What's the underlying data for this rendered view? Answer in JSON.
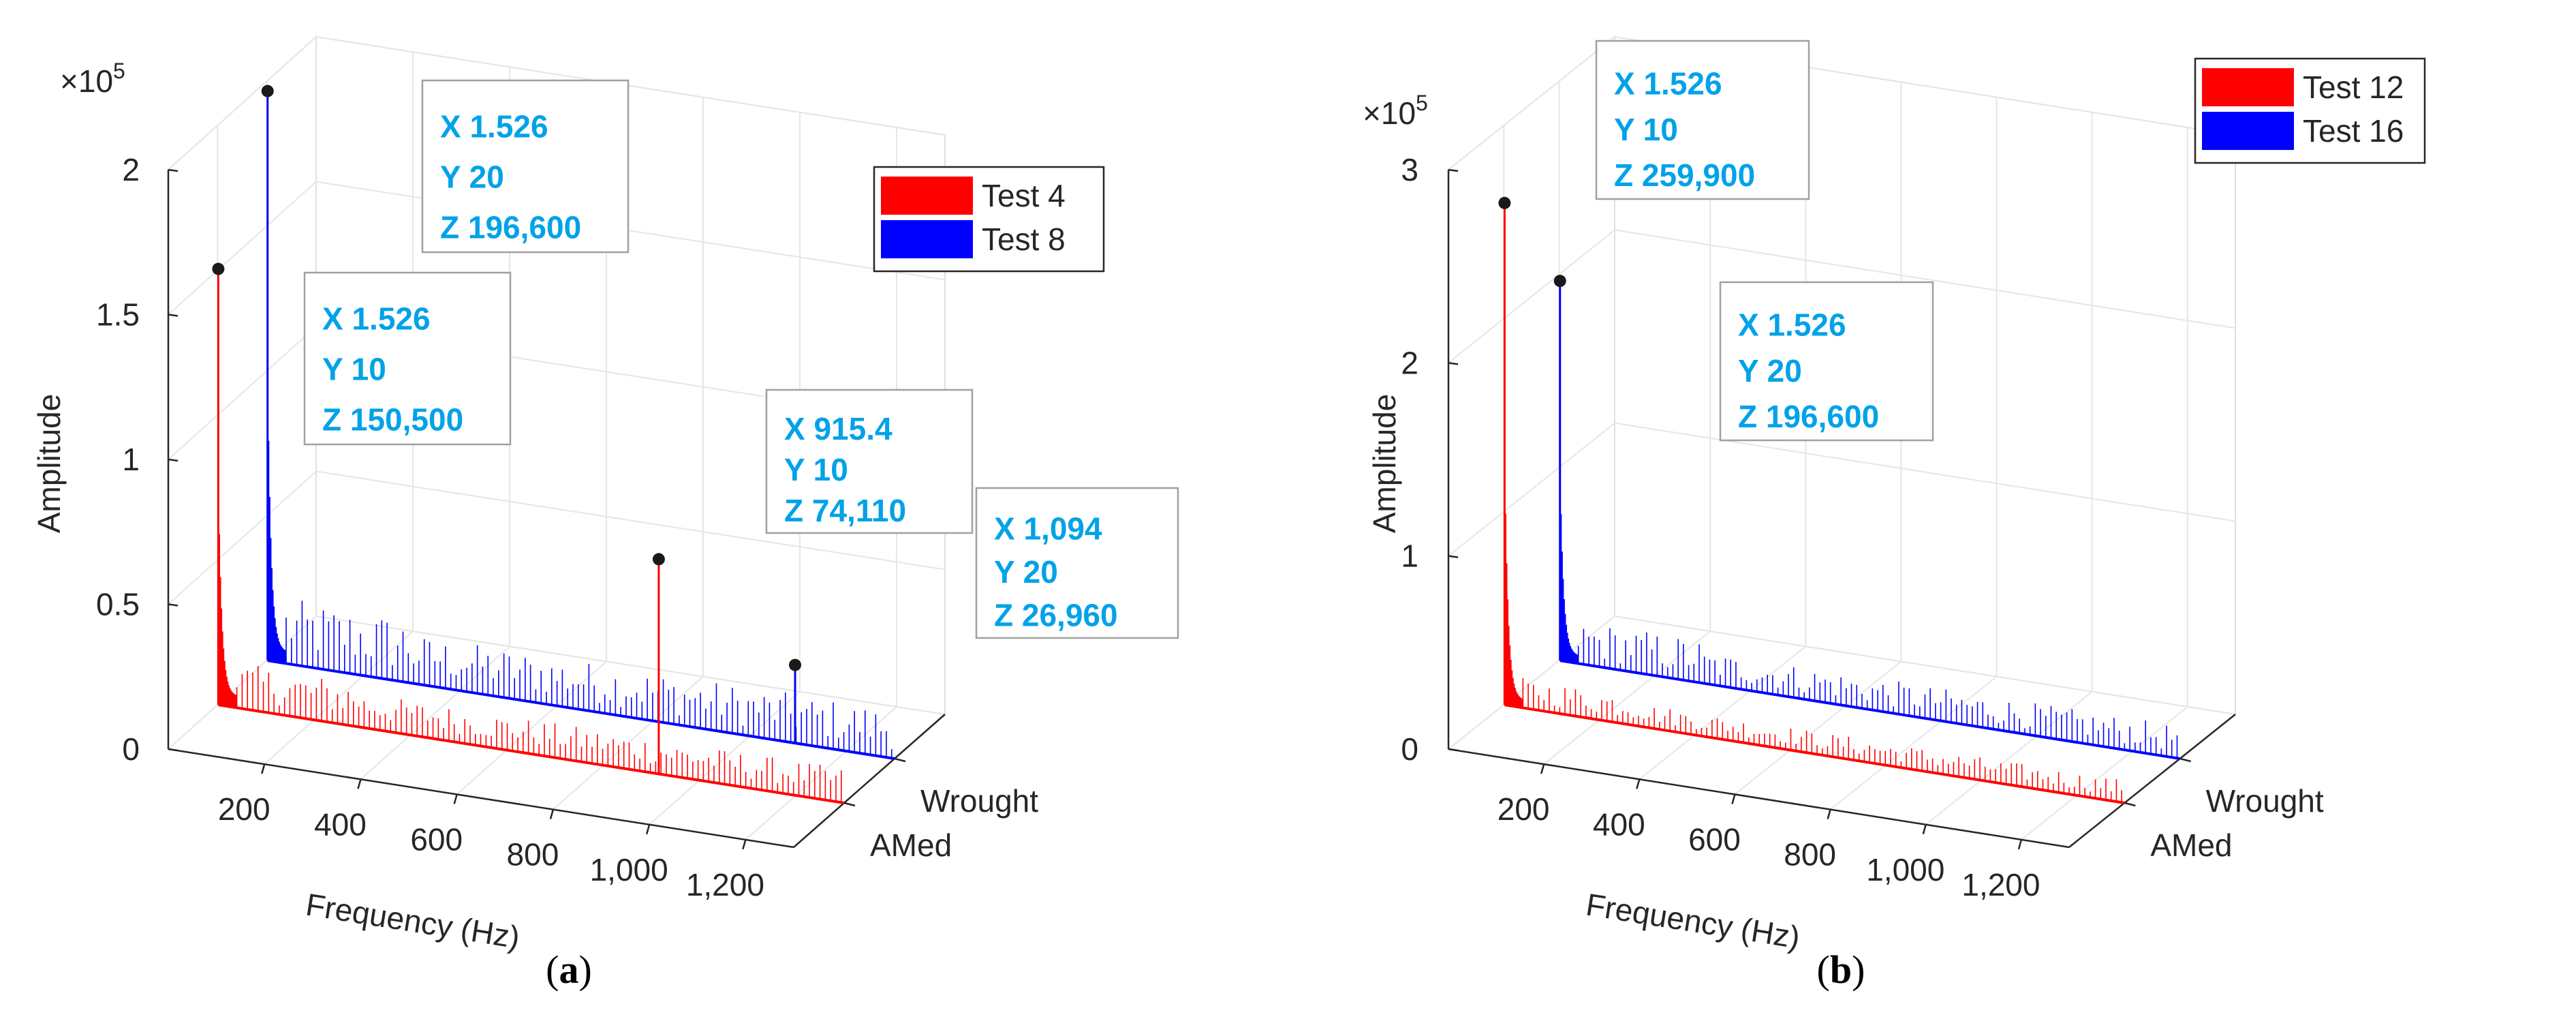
{
  "chart_data": [
    {
      "type": "3d-line",
      "panel_label": "(a)",
      "multiplier": "×10",
      "multiplier_exp": "5",
      "xlabel": "Frequency (Hz)",
      "ylabel": "Amplitude",
      "x_ticks": [
        "200",
        "400",
        "600",
        "800",
        "1,000",
        "1,200"
      ],
      "x_tick_values": [
        200,
        400,
        600,
        800,
        1000,
        1200
      ],
      "y_ticks": [
        "AMed",
        "Wrought"
      ],
      "z_ticks": [
        "0",
        "0.5",
        "1",
        "1.5",
        "2"
      ],
      "z_tick_values": [
        0,
        0.5,
        1,
        1.5,
        2
      ],
      "legend": [
        {
          "name": "Test 4",
          "color": "#ff0000"
        },
        {
          "name": "Test 8",
          "color": "#0000ff"
        }
      ],
      "series": [
        {
          "name": "Test 4",
          "y": 10,
          "color": "#ff0000",
          "peak": {
            "x": 1.526,
            "z": 150500
          }
        },
        {
          "name": "Test 8",
          "y": 20,
          "color": "#0000ff",
          "peak": {
            "x": 1.526,
            "z": 196600
          }
        }
      ],
      "datatips": [
        {
          "x": "X 1.526",
          "y": "Y 20",
          "z": "Z 196,600",
          "xv": 1.526,
          "yv": 20,
          "zv": 196600
        },
        {
          "x": "X 1.526",
          "y": "Y 10",
          "z": "Z 150,500",
          "xv": 1.526,
          "yv": 10,
          "zv": 150500
        },
        {
          "x": "X 915.4",
          "y": "Y 10",
          "z": "Z 74,110",
          "xv": 915.4,
          "yv": 10,
          "zv": 74110
        },
        {
          "x": "X 1,094",
          "y": "Y 20",
          "z": "Z 26,960",
          "xv": 1094,
          "yv": 20,
          "zv": 26960
        }
      ]
    },
    {
      "type": "3d-line",
      "panel_label": "(b)",
      "multiplier": "×10",
      "multiplier_exp": "5",
      "xlabel": "Frequency (Hz)",
      "ylabel": "Amplitude",
      "x_ticks": [
        "200",
        "400",
        "600",
        "800",
        "1,000",
        "1,200"
      ],
      "x_tick_values": [
        200,
        400,
        600,
        800,
        1000,
        1200
      ],
      "y_ticks": [
        "AMed",
        "Wrought"
      ],
      "z_ticks": [
        "0",
        "1",
        "2",
        "3"
      ],
      "z_tick_values": [
        0,
        1,
        2,
        3
      ],
      "legend": [
        {
          "name": "Test 12",
          "color": "#ff0000"
        },
        {
          "name": "Test 16",
          "color": "#0000ff"
        }
      ],
      "series": [
        {
          "name": "Test 12",
          "y": 10,
          "color": "#ff0000",
          "peak": {
            "x": 1.526,
            "z": 259900
          }
        },
        {
          "name": "Test 16",
          "y": 20,
          "color": "#0000ff",
          "peak": {
            "x": 1.526,
            "z": 196600
          }
        }
      ],
      "datatips": [
        {
          "x": "X 1.526",
          "y": "Y 10",
          "z": "Z 259,900",
          "xv": 1.526,
          "yv": 10,
          "zv": 259900
        },
        {
          "x": "X 1.526",
          "y": "Y 20",
          "z": "Z 196,600",
          "xv": 1.526,
          "yv": 20,
          "zv": 196600
        }
      ]
    }
  ]
}
